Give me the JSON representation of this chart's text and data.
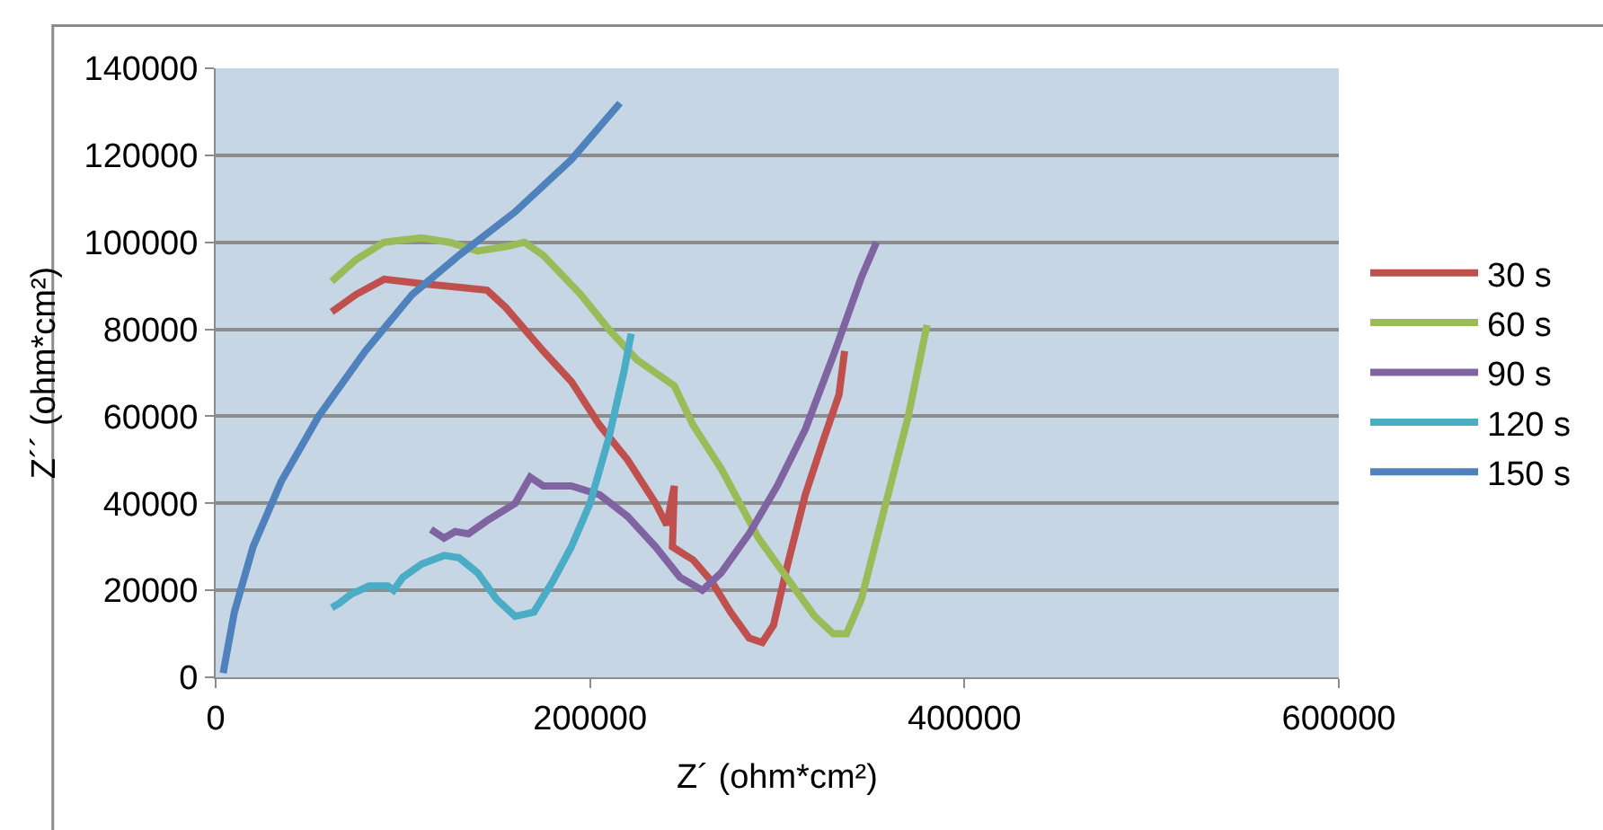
{
  "chart_data": {
    "type": "line",
    "xlabel": "Z´ (ohm*cm²)",
    "ylabel": "Z´´ (ohm*cm²)",
    "xlim": [
      0,
      600000
    ],
    "xticks": [
      0,
      200000,
      400000,
      600000
    ],
    "ylim": [
      0,
      140000
    ],
    "yticks": [
      0,
      20000,
      40000,
      60000,
      80000,
      100000,
      120000,
      140000
    ],
    "grid": "y",
    "legend": "right",
    "marker": "none",
    "line_style": "solid",
    "series": [
      {
        "name": "30 s",
        "color": "#c0504d",
        "x": [
          62000,
          75000,
          90000,
          110000,
          145000,
          155000,
          175000,
          190000,
          205000,
          220000,
          235000,
          241000,
          245000,
          244000,
          255000,
          265000,
          275000,
          285000,
          292000,
          298000,
          305000,
          315000,
          325000,
          333000,
          336000
        ],
        "values": [
          84000,
          88000,
          91500,
          90500,
          89000,
          85000,
          75000,
          68000,
          58000,
          50000,
          40000,
          35000,
          44000,
          30000,
          27000,
          22000,
          15000,
          9000,
          8000,
          12000,
          25000,
          42000,
          55000,
          65000,
          75000
        ]
      },
      {
        "name": "60 s",
        "color": "#9bbb59",
        "x": [
          62000,
          75000,
          90000,
          110000,
          125000,
          140000,
          155000,
          165000,
          175000,
          195000,
          210000,
          225000,
          245000,
          255000,
          270000,
          280000,
          290000,
          305000,
          320000,
          330000,
          337000,
          345000,
          355000,
          370000,
          380000
        ],
        "values": [
          91000,
          96000,
          100000,
          101000,
          100000,
          98000,
          99000,
          100000,
          97000,
          88000,
          80000,
          73000,
          67000,
          58000,
          48000,
          40000,
          32000,
          23000,
          14000,
          10000,
          10000,
          18000,
          35000,
          60000,
          81000
        ]
      },
      {
        "name": "90 s",
        "color": "#8064a2",
        "x": [
          115000,
          122000,
          128000,
          135000,
          145000,
          160000,
          168000,
          175000,
          190000,
          205000,
          220000,
          235000,
          248000,
          260000,
          270000,
          285000,
          300000,
          315000,
          330000,
          345000,
          353000
        ],
        "values": [
          34000,
          32000,
          33500,
          33000,
          36000,
          40000,
          46000,
          44000,
          44000,
          42000,
          37000,
          30000,
          23000,
          20000,
          24000,
          33000,
          44000,
          57000,
          74000,
          92000,
          100000
        ]
      },
      {
        "name": "120 s",
        "color": "#4bacc6",
        "x": [
          62000,
          66000,
          72000,
          82000,
          92000,
          95000,
          100000,
          110000,
          122000,
          130000,
          140000,
          150000,
          160000,
          170000,
          180000,
          190000,
          200000,
          210000,
          218000,
          222000
        ],
        "values": [
          16000,
          17000,
          19000,
          21000,
          21000,
          20000,
          23000,
          26000,
          28000,
          27500,
          24000,
          18000,
          14000,
          15000,
          22000,
          30000,
          40000,
          55000,
          70000,
          79000
        ]
      },
      {
        "name": "150 s",
        "color": "#4f81bd",
        "x": [
          4000,
          10000,
          20000,
          35000,
          55000,
          80000,
          105000,
          130000,
          160000,
          190000,
          216000
        ],
        "values": [
          1000,
          15000,
          30000,
          45000,
          60000,
          75000,
          88000,
          97000,
          107000,
          119000,
          132000
        ]
      }
    ]
  }
}
